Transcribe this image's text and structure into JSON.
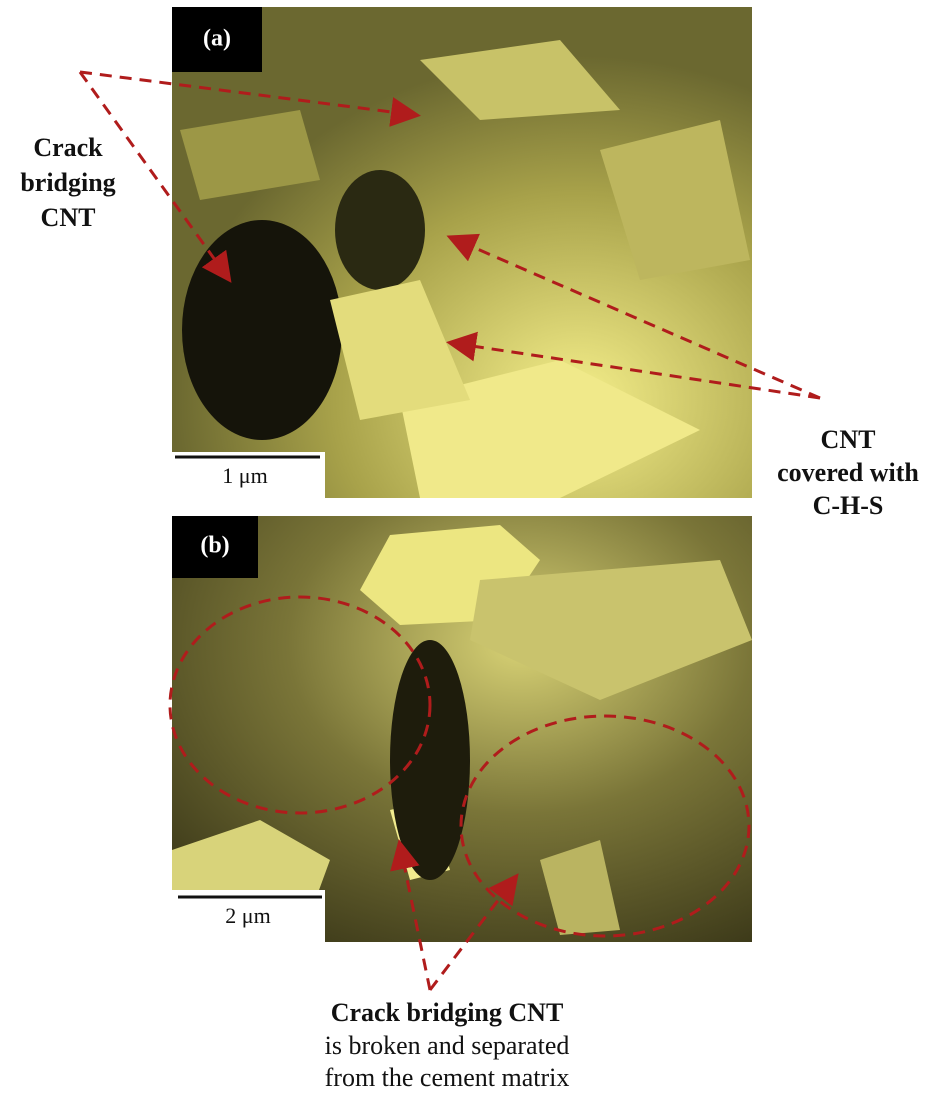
{
  "panels": [
    {
      "label": "(a)",
      "scale_bar": "1 μm"
    },
    {
      "label": "(b)",
      "scale_bar": "2 μm"
    }
  ],
  "annotations": {
    "left": [
      "Crack",
      "bridging",
      "CNT"
    ],
    "right": [
      "CNT",
      "covered with",
      "C-H-S"
    ],
    "bottom": {
      "bold": "Crack bridging CNT",
      "lines": [
        "is broken and separated",
        "from the cement matrix"
      ]
    }
  }
}
